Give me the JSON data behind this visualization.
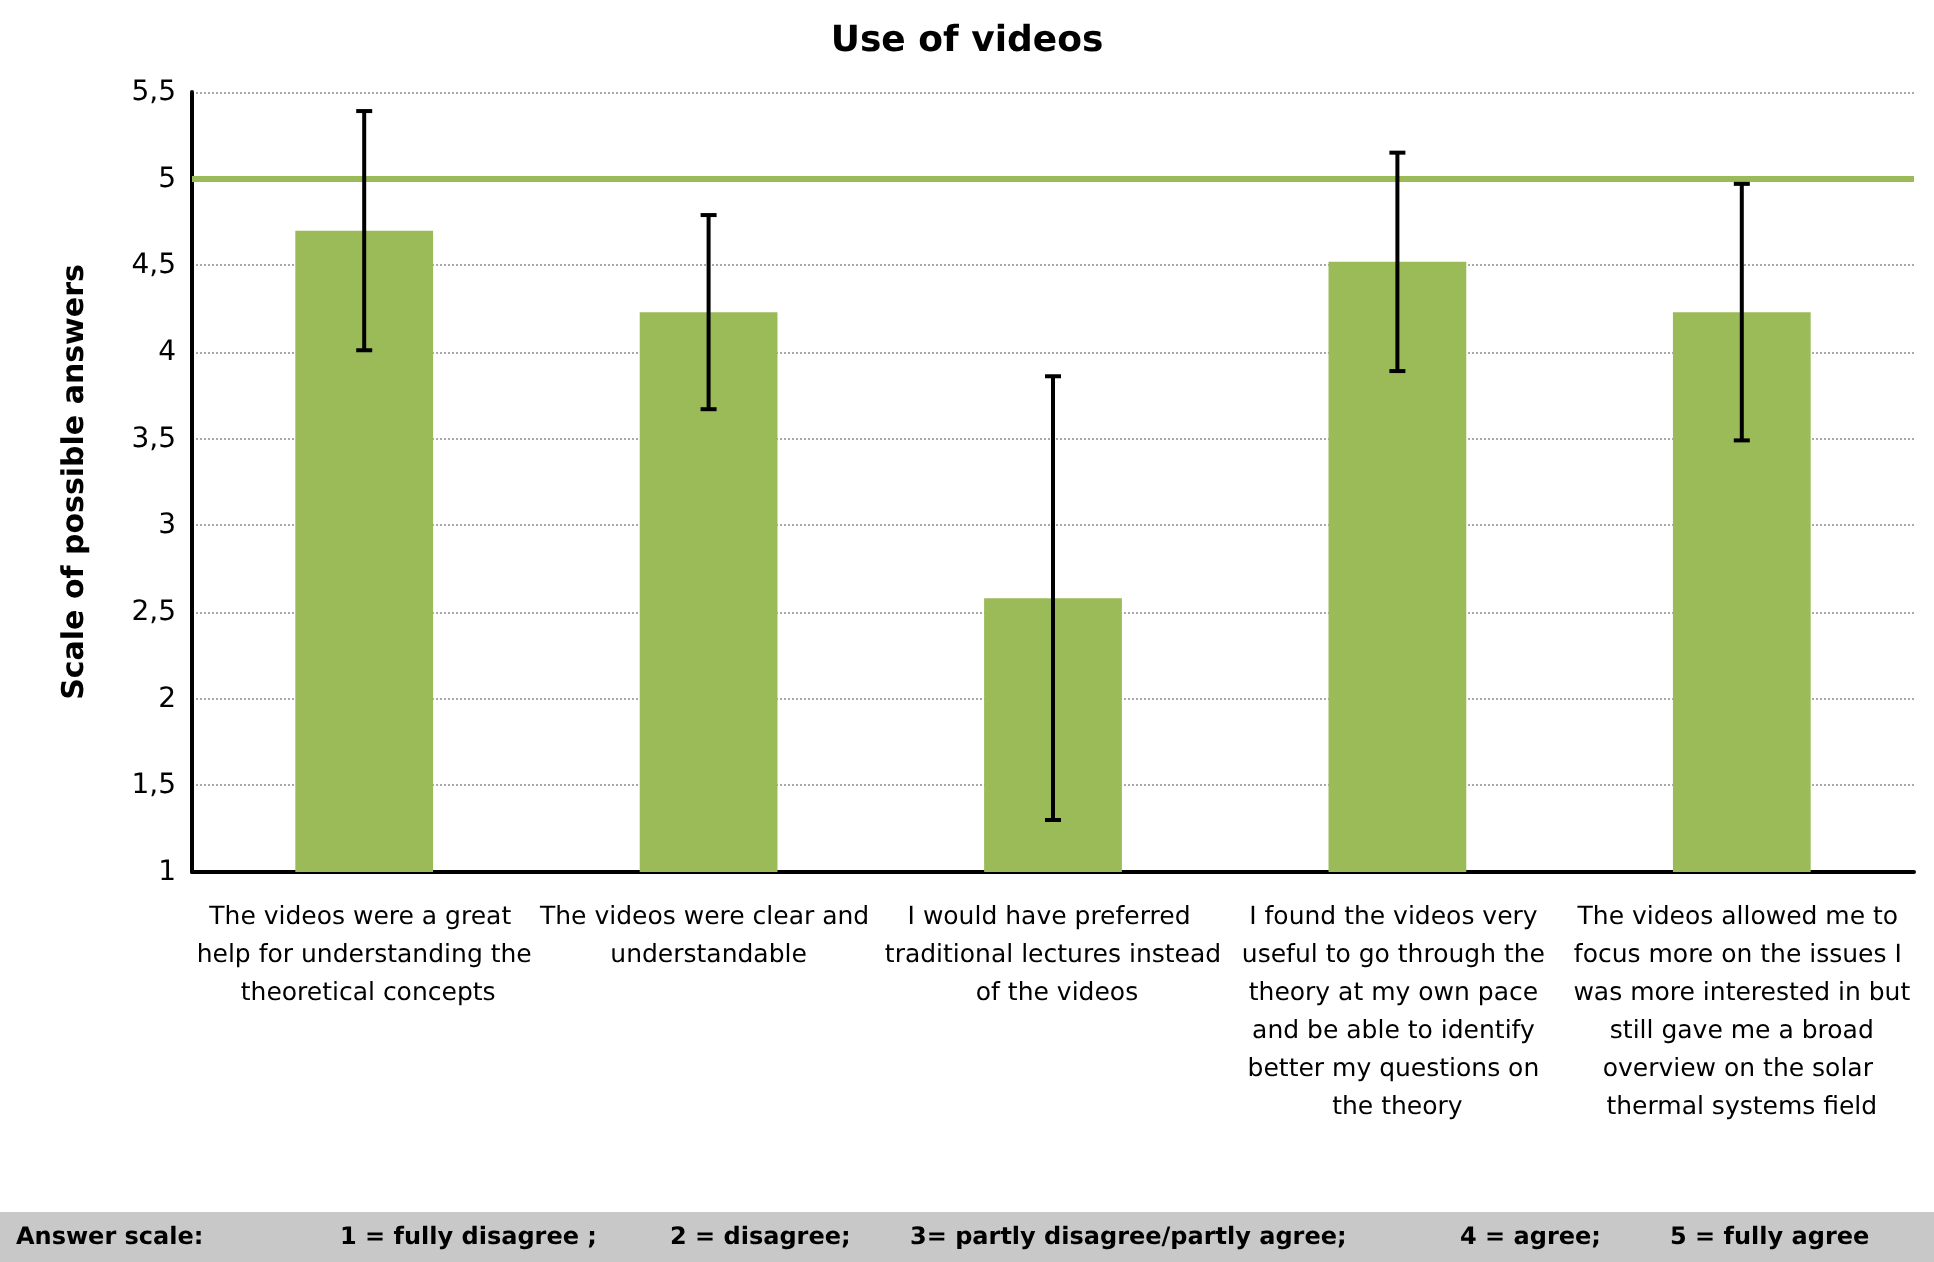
{
  "chart_data": {
    "type": "bar",
    "title": "Use of videos",
    "ylabel": "Scale of possible answers",
    "categories": [
      "The videos were a great help for understanding the theoretical concepts",
      "The videos were clear and understandable",
      "I would have preferred traditional lectures instead of the videos",
      "I found the videos very useful to go through the theory at my own pace and be able to identify better my questions on the theory",
      "The videos allowed me to focus more on the issues I was more interested in but still gave me a broad overview on the solar thermal systems field"
    ],
    "values": [
      4.7,
      4.23,
      2.58,
      4.52,
      4.23
    ],
    "errors": [
      0.69,
      0.56,
      1.28,
      0.63,
      0.74
    ],
    "color": "#9bbb59",
    "ylim": [
      1,
      5.5
    ],
    "yticks": [
      1,
      {
        "value": 1.5,
        "label": "1,5"
      },
      2,
      {
        "value": 2.5,
        "label": "2,5"
      },
      3,
      {
        "value": 3.5,
        "label": "3,5"
      },
      4,
      {
        "value": 4.5,
        "label": "4,5"
      },
      5,
      {
        "value": 5.5,
        "label": "5,5"
      }
    ],
    "grid": "y",
    "ref_lines": [
      {
        "axis": "y",
        "value": 5,
        "color": "#9bbb59",
        "line_style": "solid"
      }
    ],
    "annotations": [
      "Answer scale:",
      "1 = fully disagree ;",
      "2 = disagree;",
      "3= partly disagree/partly agree;",
      "4 = agree;",
      "5 = fully agree"
    ]
  }
}
